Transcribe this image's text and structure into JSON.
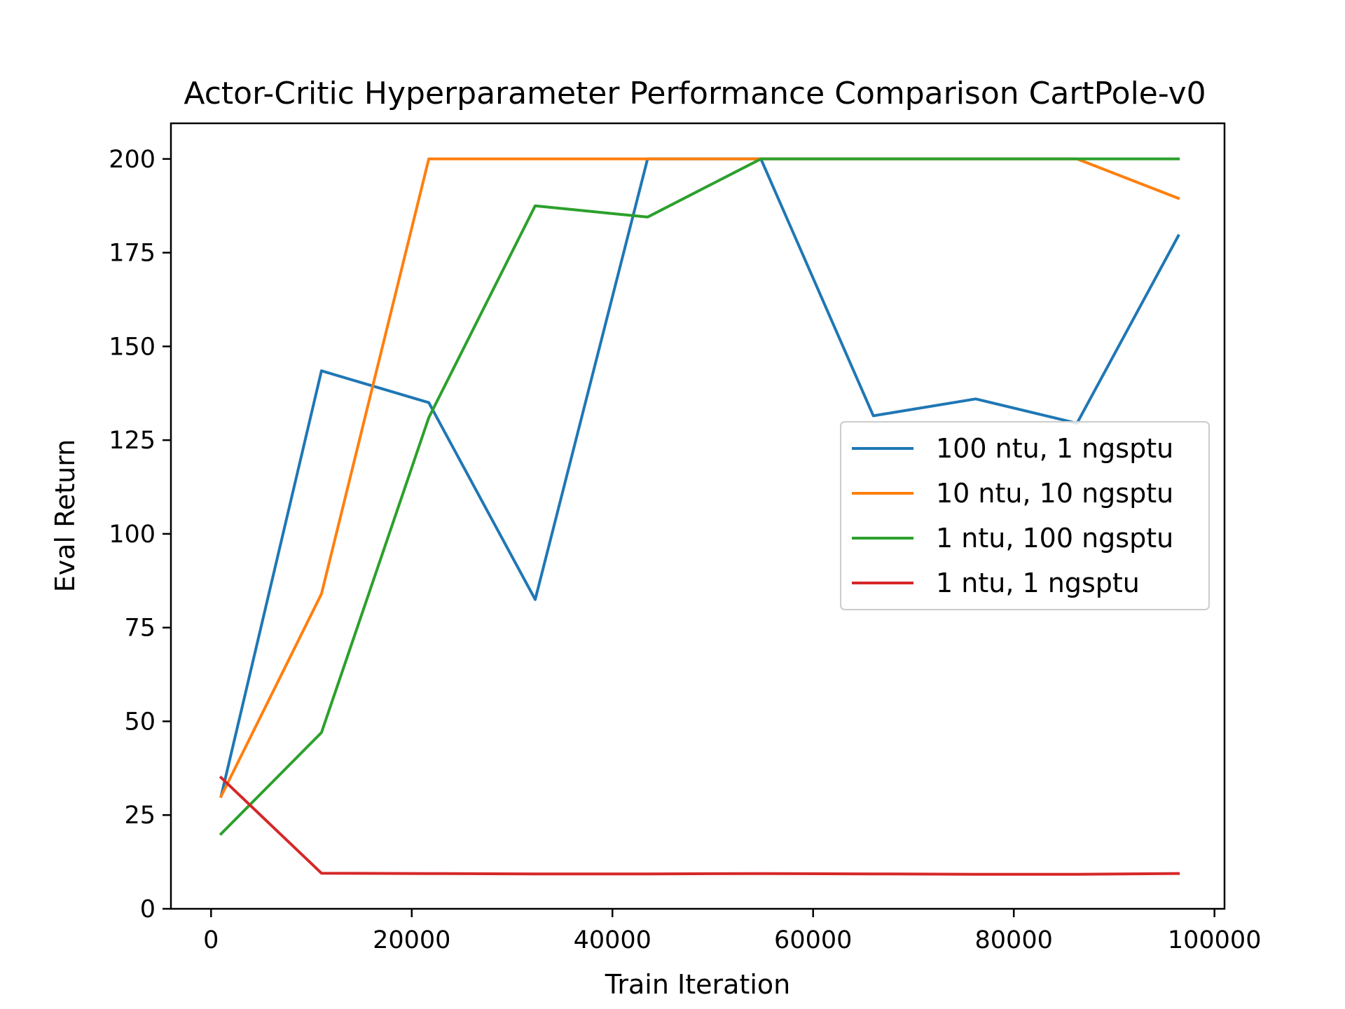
{
  "chart_data": {
    "type": "line",
    "title": "Actor-Critic Hyperparameter Performance Comparison CartPole-v0",
    "xlabel": "Train Iteration",
    "ylabel": "Eval Return",
    "xlim": [
      -4000,
      101000
    ],
    "ylim": [
      0,
      209.5
    ],
    "xticks": [
      0,
      20000,
      40000,
      60000,
      80000,
      100000
    ],
    "yticks": [
      0,
      25,
      50,
      75,
      100,
      125,
      150,
      175,
      200
    ],
    "grid": false,
    "legend_position": "center-right",
    "x": [
      1000,
      11000,
      21700,
      32300,
      43500,
      54800,
      66000,
      76200,
      86300,
      96400
    ],
    "series": [
      {
        "name": "100 ntu, 1 ngsptu",
        "color": "#1f77b4",
        "values": [
          30,
          143.5,
          135,
          82.5,
          200,
          200,
          131.5,
          136,
          129.5,
          179.5
        ]
      },
      {
        "name": "10 ntu, 10 ngsptu",
        "color": "#ff7f0e",
        "values": [
          30,
          84,
          200,
          200,
          200,
          200,
          200,
          200,
          200,
          189.5
        ]
      },
      {
        "name": "1 ntu, 100 ngsptu",
        "color": "#2ca02c",
        "values": [
          20,
          47,
          131,
          187.5,
          184.5,
          200,
          200,
          200,
          200,
          200
        ]
      },
      {
        "name": "1 ntu, 1 ngsptu",
        "color": "#d62728",
        "values": [
          35,
          9.5,
          9.4,
          9.3,
          9.3,
          9.4,
          9.3,
          9.2,
          9.2,
          9.4
        ]
      }
    ]
  }
}
